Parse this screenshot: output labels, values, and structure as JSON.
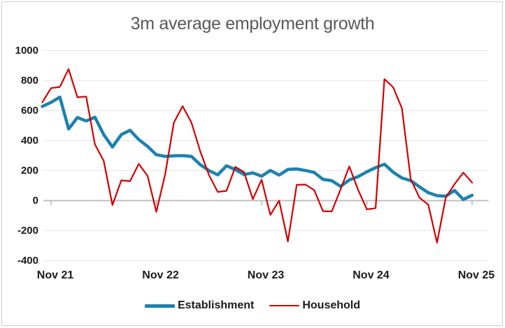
{
  "title": "3m average employment growth",
  "colors": {
    "title_text": "#595959",
    "axis_text": "#1A1A1A",
    "legend_text": "#1A1A1A",
    "gridline": "#E7E7E7",
    "zero_line": "#BFBFBF",
    "tick": "#A6A6A6",
    "border": "#C9C9C9",
    "background": "#FFFFFF",
    "establishment": "#1B82AD",
    "household": "#D00000"
  },
  "chart_data": {
    "type": "line",
    "title": "3m average employment growth",
    "xlabel": "",
    "ylabel": "",
    "ylim": [
      -400,
      1000
    ],
    "y_ticks": [
      1000,
      800,
      600,
      400,
      200,
      0,
      -200,
      -400
    ],
    "y_tick_labels": [
      "1000",
      "800",
      "600",
      "400",
      "200",
      "0",
      "-200",
      "-400"
    ],
    "x_axis_tick_labels": [
      "Nov 21",
      "Nov 22",
      "Nov 23",
      "Nov 24",
      "Nov 25"
    ],
    "grid": "horizontal",
    "legend_position": "bottom",
    "x": [
      "Oct 21",
      "Nov 21",
      "Dec 21",
      "Jan 22",
      "Feb 22",
      "Mar 22",
      "Apr 22",
      "May 22",
      "Jun 22",
      "Jul 22",
      "Aug 22",
      "Sep 22",
      "Oct 22",
      "Nov 22",
      "Dec 22",
      "Jan 23",
      "Feb 23",
      "Mar 23",
      "Apr 23",
      "May 23",
      "Jun 23",
      "Jul 23",
      "Aug 23",
      "Sep 23",
      "Oct 23",
      "Nov 23",
      "Dec 23",
      "Jan 24",
      "Feb 24",
      "Mar 24",
      "Apr 24",
      "May 24",
      "Jun 24",
      "Jul 24",
      "Aug 24",
      "Sep 24",
      "Oct 24",
      "Nov 24",
      "Dec 24",
      "Jan 25",
      "Feb 25",
      "Mar 25",
      "Apr 25",
      "May 25",
      "Jun 25",
      "Jul 25",
      "Aug 25",
      "Sep 25",
      "Oct 25",
      "Nov 25"
    ],
    "series": [
      {
        "name": "Establishment",
        "color": "#1B82AD",
        "stroke_width": 4.5,
        "values": [
          628,
          655,
          690,
          478,
          554,
          531,
          556,
          440,
          357,
          440,
          469,
          407,
          362,
          306,
          295,
          299,
          300,
          295,
          240,
          200,
          172,
          232,
          207,
          174,
          185,
          163,
          201,
          170,
          208,
          211,
          201,
          188,
          142,
          133,
          95,
          138,
          160,
          192,
          220,
          243,
          190,
          151,
          133,
          92,
          53,
          33,
          30,
          68,
          8,
          36
        ]
      },
      {
        "name": "Household",
        "color": "#D00000",
        "stroke_width": 2.2,
        "values": [
          655,
          750,
          758,
          877,
          689,
          694,
          375,
          265,
          -30,
          135,
          130,
          245,
          165,
          -75,
          175,
          520,
          630,
          520,
          330,
          170,
          58,
          65,
          225,
          190,
          10,
          140,
          -95,
          0,
          -272,
          105,
          107,
          70,
          -70,
          -72,
          75,
          228,
          73,
          -58,
          -50,
          810,
          756,
          616,
          143,
          20,
          -27,
          -280,
          20,
          110,
          187,
          120
        ]
      }
    ]
  }
}
